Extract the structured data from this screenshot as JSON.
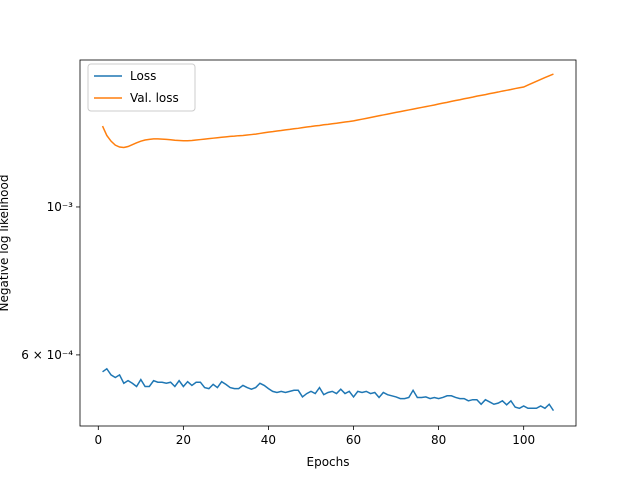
{
  "chart_data": {
    "type": "line",
    "xlabel": "Epochs",
    "ylabel": "Negative log likelihood",
    "x": [
      1,
      2,
      3,
      4,
      5,
      6,
      7,
      8,
      9,
      10,
      11,
      12,
      13,
      14,
      15,
      16,
      17,
      18,
      19,
      20,
      21,
      22,
      23,
      24,
      25,
      26,
      27,
      28,
      29,
      30,
      31,
      32,
      33,
      34,
      35,
      36,
      37,
      38,
      39,
      40,
      41,
      42,
      43,
      44,
      45,
      46,
      47,
      48,
      49,
      50,
      51,
      52,
      53,
      54,
      55,
      56,
      57,
      58,
      59,
      60,
      61,
      62,
      63,
      64,
      65,
      66,
      67,
      68,
      69,
      70,
      71,
      72,
      73,
      74,
      75,
      76,
      77,
      78,
      79,
      80,
      81,
      82,
      83,
      84,
      85,
      86,
      87,
      88,
      89,
      90,
      91,
      92,
      93,
      94,
      95,
      96,
      97,
      98,
      99,
      100,
      101,
      102,
      103,
      104,
      105,
      106,
      107
    ],
    "series": [
      {
        "name": "Loss",
        "color": "#1f77b4",
        "values": [
          0.000566,
          0.000572,
          0.00056,
          0.000555,
          0.00056,
          0.000544,
          0.000549,
          0.000544,
          0.000538,
          0.000551,
          0.000538,
          0.000538,
          0.000549,
          0.000546,
          0.000546,
          0.000544,
          0.000546,
          0.000538,
          0.000549,
          0.000538,
          0.000547,
          0.00054,
          0.000546,
          0.000546,
          0.000536,
          0.000534,
          0.000542,
          0.000536,
          0.000547,
          0.000542,
          0.000536,
          0.000534,
          0.000534,
          0.00054,
          0.000536,
          0.000533,
          0.000536,
          0.000544,
          0.00054,
          0.000534,
          0.000529,
          0.000527,
          0.000529,
          0.000527,
          0.000529,
          0.000531,
          0.000531,
          0.000519,
          0.000525,
          0.000529,
          0.000525,
          0.000536,
          0.000523,
          0.000527,
          0.000529,
          0.000525,
          0.000533,
          0.000525,
          0.000529,
          0.000519,
          0.000529,
          0.000527,
          0.000529,
          0.000525,
          0.000527,
          0.000518,
          0.000527,
          0.000523,
          0.000521,
          0.000519,
          0.000516,
          0.000516,
          0.000518,
          0.000531,
          0.000518,
          0.000518,
          0.000519,
          0.000516,
          0.000518,
          0.000516,
          0.000518,
          0.000521,
          0.000521,
          0.000518,
          0.000516,
          0.000516,
          0.000512,
          0.000514,
          0.000514,
          0.000506,
          0.000514,
          0.00051,
          0.000506,
          0.000508,
          0.000512,
          0.000505,
          0.000512,
          0.000501,
          0.000499,
          0.000503,
          0.000499,
          0.000499,
          0.000499,
          0.000503,
          0.000499,
          0.000506,
          0.000495
        ]
      },
      {
        "name": "Val. loss",
        "color": "#ff7f0e",
        "values": [
          0.001322,
          0.00128,
          0.001255,
          0.001238,
          0.00123,
          0.001228,
          0.001232,
          0.00124,
          0.001248,
          0.001255,
          0.00126,
          0.001263,
          0.001265,
          0.001265,
          0.001264,
          0.001263,
          0.001261,
          0.001259,
          0.001258,
          0.001257,
          0.001257,
          0.001258,
          0.00126,
          0.001262,
          0.001264,
          0.001266,
          0.001268,
          0.00127,
          0.001272,
          0.001274,
          0.001276,
          0.001277,
          0.001279,
          0.00128,
          0.001282,
          0.001284,
          0.001286,
          0.001289,
          0.001292,
          0.001295,
          0.001297,
          0.0013,
          0.001302,
          0.001305,
          0.001307,
          0.00131,
          0.001312,
          0.001315,
          0.001318,
          0.00132,
          0.001323,
          0.001325,
          0.001328,
          0.00133,
          0.001333,
          0.001335,
          0.001338,
          0.001341,
          0.001343,
          0.001346,
          0.00135,
          0.001354,
          0.001358,
          0.001362,
          0.001366,
          0.00137,
          0.001374,
          0.001378,
          0.001382,
          0.001386,
          0.00139,
          0.001394,
          0.001398,
          0.001402,
          0.001406,
          0.00141,
          0.001414,
          0.001418,
          0.001422,
          0.001427,
          0.001431,
          0.001435,
          0.00144,
          0.001444,
          0.001448,
          0.001453,
          0.001457,
          0.001461,
          0.001466,
          0.00147,
          0.001474,
          0.001479,
          0.001483,
          0.001487,
          0.001492,
          0.001496,
          0.0015,
          0.001505,
          0.001509,
          0.001513,
          0.001523,
          0.001533,
          0.001543,
          0.001553,
          0.001563,
          0.001573,
          0.001582
        ]
      }
    ],
    "xlim": [
      -4.3,
      112.3
    ],
    "xticks": [
      0,
      20,
      40,
      60,
      80,
      100
    ],
    "ylim": [
      0.0004694,
      0.001661
    ],
    "yscale": "log",
    "yticks": [
      {
        "value": 0.0006,
        "label": "6 × 10⁻⁴"
      },
      {
        "value": 0.001,
        "label": "10⁻³"
      }
    ],
    "legend": "upper left",
    "grid": false
  }
}
